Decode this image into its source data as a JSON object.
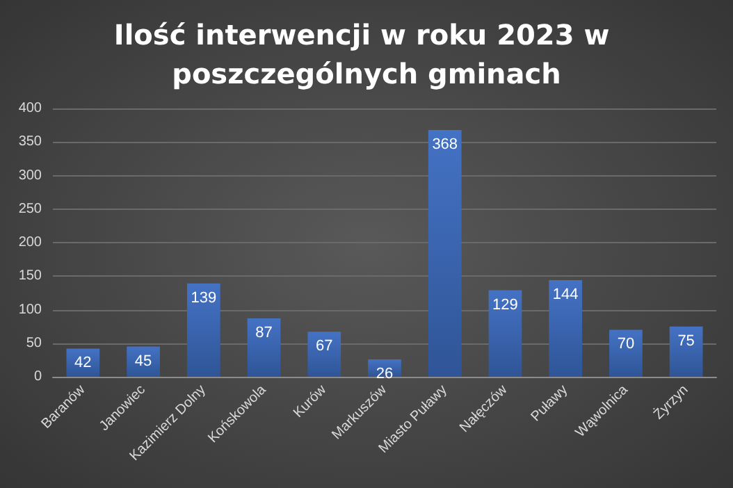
{
  "chart_data": {
    "type": "bar",
    "title": "Ilość interwencji w roku 2023 w poszczególnych gminach",
    "categories": [
      "Baranów",
      "Janowiec",
      "Kazimierz Dolny",
      "Końskowola",
      "Kurów",
      "Markuszów",
      "Miasto Puławy",
      "Nałęczów",
      "Puławy",
      "Wąwolnica",
      "Żyrzyn"
    ],
    "values": [
      42,
      45,
      139,
      87,
      67,
      26,
      368,
      129,
      144,
      70,
      75
    ],
    "color": "#4472c4",
    "ylim": [
      0,
      400
    ],
    "yticks": [
      0,
      50,
      100,
      150,
      200,
      250,
      300,
      350,
      400
    ],
    "grid": "y",
    "data_labels": true
  }
}
